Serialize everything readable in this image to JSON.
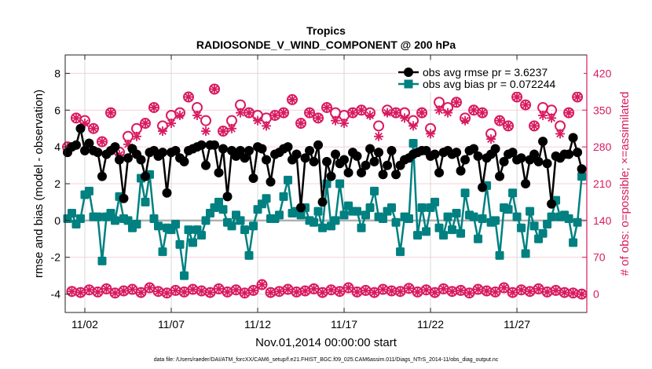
{
  "chart_data": {
    "type": "line",
    "title": "Tropics",
    "subtitle": "RADIOSONDE_V_WIND_COMPONENT @ 200 hPa",
    "xlabel": "Nov.01,2014 00:00:00 start",
    "ylabel": "rmse and bias (model - observation)",
    "y2label": "# of obs: o=possible; ×=assimilated",
    "footer": "data file: /Users/raeder/DAI/ATM_forcXX/CAM6_setup/f.e21.FHIST_BGC.f09_025.CAM6assim.011/Diags_NTrS_2014-11/obs_diag_output.nc",
    "x_tick_labels": [
      "11/02",
      "11/07",
      "11/12",
      "11/17",
      "11/22",
      "11/27"
    ],
    "x_tick_dates": [
      "2014-11-02",
      "2014-11-07",
      "2014-11-12",
      "2014-11-17",
      "2014-11-22",
      "2014-11-27"
    ],
    "xlim": [
      "2014-10-31 20:45",
      "2014-12-01 01:00"
    ],
    "time_start": "2014-11-01 00:00",
    "time_step_hours": 6,
    "ylim": [
      -5,
      9
    ],
    "y_ticks": [
      -4,
      -2,
      0,
      2,
      4,
      6,
      8
    ],
    "y2lim": [
      -35,
      455
    ],
    "y2_ticks": [
      0,
      70,
      140,
      210,
      280,
      350,
      420
    ],
    "grid": true,
    "legend_position": "top-right",
    "colors": {
      "rmse": "#000000",
      "bias": "#008080",
      "obs": "#d81b60",
      "zero_line": "#b0b0b0",
      "grid_h": "#f7cfdc",
      "grid_v": "#d8d8d8"
    },
    "series": [
      {
        "name": "obs avg rmse pr = 3.6237",
        "axis": "left",
        "marker": "circle",
        "values": [
          3.7,
          4.0,
          4.1,
          5.0,
          3.8,
          4.2,
          3.8,
          3.7,
          2.4,
          3.6,
          3.8,
          4.0,
          3.3,
          1.2,
          3.4,
          3.9,
          3.6,
          3.3,
          2.4,
          3.7,
          3.8,
          3.5,
          3.7,
          1.5,
          3.7,
          3.8,
          3.4,
          3.2,
          3.8,
          3.9,
          4.0,
          4.1,
          3.0,
          4.1,
          4.1,
          2.6,
          3.9,
          1.3,
          3.8,
          3.5,
          3.8,
          3.4,
          3.8,
          2.3,
          4.0,
          3.9,
          3.3,
          2.1,
          3.6,
          3.7,
          3.9,
          4.0,
          3.3,
          3.6,
          0.7,
          3.4,
          3.8,
          3.2,
          4.1,
          1.0,
          3.2,
          2.4,
          3.6,
          3.1,
          3.3,
          2.6,
          3.7,
          3.5,
          2.6,
          3.0,
          3.9,
          3.2,
          3.7,
          2.5,
          3.0,
          3.8,
          2.5,
          3.0,
          3.3,
          3.4,
          3.6,
          3.7,
          3.8,
          3.8,
          3.5,
          3.6,
          2.6,
          3.7,
          3.8,
          3.6,
          3.7,
          2.7,
          3.3,
          3.8,
          3.9,
          3.5,
          1.8,
          3.4,
          3.6,
          3.9,
          2.4,
          3.2,
          3.6,
          3.7,
          3.3,
          3.4,
          2.0,
          3.3,
          3.6,
          3.2,
          4.3,
          3.1,
          0.9,
          3.5,
          3.4,
          3.6,
          3.6,
          4.5,
          3.7,
          2.8
        ]
      },
      {
        "name": "obs avg bias pr = 0.072244",
        "axis": "left",
        "marker": "square",
        "values": [
          0.1,
          0.4,
          -0.2,
          0.1,
          1.4,
          1.6,
          0.2,
          0.2,
          -2.2,
          0.2,
          0.4,
          0.0,
          1.3,
          0.1,
          0.0,
          -0.4,
          -0.2,
          2.3,
          1.0,
          2.5,
          0.1,
          -0.3,
          -1.7,
          -0.4,
          -0.5,
          -0.2,
          -1.3,
          -3.0,
          -0.5,
          -1.2,
          -0.5,
          -0.8,
          0.0,
          0.4,
          0.7,
          1.0,
          0.6,
          -0.1,
          -0.3,
          0.3,
          0.0,
          -0.5,
          -1.9,
          -0.3,
          0.6,
          0.9,
          1.2,
          0.1,
          0.1,
          0.3,
          1.3,
          2.2,
          0.4,
          0.5,
          0.3,
          0.7,
          0.0,
          -0.1,
          0.5,
          -0.4,
          2.0,
          -0.3,
          0.0,
          2.0,
          0.3,
          0.8,
          0.5,
          0.5,
          -0.4,
          0.3,
          0.7,
          1.6,
          0.2,
          0.1,
          0.5,
          0.7,
          -0.1,
          -1.7,
          0.2,
          0.1,
          4.2,
          -0.8,
          0.7,
          -0.6,
          0.7,
          1.0,
          -0.4,
          -0.8,
          0.2,
          -0.5,
          0.4,
          -0.7,
          1.5,
          0.3,
          0.2,
          -1.0,
          0.1,
          1.9,
          -0.1,
          0.0,
          -1.9,
          0.7,
          0.6,
          1.5,
          0.2,
          -0.4,
          -1.8,
          0.5,
          -0.3,
          -1.0,
          -0.7,
          -0.2,
          0.2,
          1.1,
          0.2,
          0.3,
          0.1,
          -1.2,
          -0.1,
          2.4
        ]
      },
      {
        "name": "obs possible",
        "axis": "right",
        "marker": "open-circle",
        "values": [
          280,
          5,
          335,
          3,
          330,
          8,
          315,
          4,
          290,
          10,
          345,
          2,
          270,
          6,
          300,
          9,
          315,
          3,
          325,
          12,
          355,
          5,
          320,
          2,
          340,
          7,
          345,
          4,
          375,
          9,
          355,
          6,
          330,
          3,
          390,
          10,
          310,
          4,
          330,
          8,
          360,
          2,
          345,
          7,
          340,
          18,
          335,
          3,
          340,
          5,
          345,
          9,
          370,
          4,
          325,
          6,
          345,
          10,
          335,
          3,
          355,
          8,
          345,
          5,
          340,
          12,
          345,
          4,
          350,
          7,
          345,
          3,
          320,
          9,
          350,
          6,
          345,
          5,
          345,
          11,
          330,
          4,
          345,
          8,
          315,
          3,
          365,
          10,
          355,
          5,
          365,
          7,
          335,
          2,
          350,
          9,
          345,
          6,
          305,
          4,
          330,
          12,
          320,
          3,
          375,
          8,
          360,
          5,
          320,
          10,
          355,
          4,
          350,
          7,
          320,
          3,
          345,
          2,
          375,
          0
        ]
      },
      {
        "name": "obs assimilated",
        "axis": "right",
        "marker": "asterisk",
        "values": [
          280,
          5,
          335,
          3,
          325,
          8,
          315,
          4,
          290,
          10,
          345,
          2,
          265,
          6,
          285,
          9,
          300,
          3,
          325,
          12,
          355,
          5,
          310,
          2,
          325,
          7,
          340,
          4,
          375,
          9,
          340,
          6,
          310,
          3,
          390,
          10,
          310,
          4,
          315,
          8,
          345,
          2,
          345,
          7,
          330,
          18,
          320,
          3,
          340,
          5,
          345,
          9,
          370,
          4,
          325,
          6,
          345,
          10,
          335,
          3,
          355,
          8,
          330,
          5,
          325,
          12,
          345,
          4,
          350,
          7,
          340,
          3,
          300,
          9,
          345,
          6,
          345,
          5,
          335,
          11,
          320,
          4,
          345,
          8,
          305,
          3,
          350,
          10,
          345,
          5,
          365,
          7,
          330,
          2,
          350,
          9,
          345,
          6,
          295,
          4,
          330,
          12,
          320,
          3,
          375,
          8,
          360,
          5,
          320,
          10,
          340,
          4,
          335,
          7,
          305,
          3,
          345,
          2,
          375,
          0
        ]
      }
    ]
  }
}
